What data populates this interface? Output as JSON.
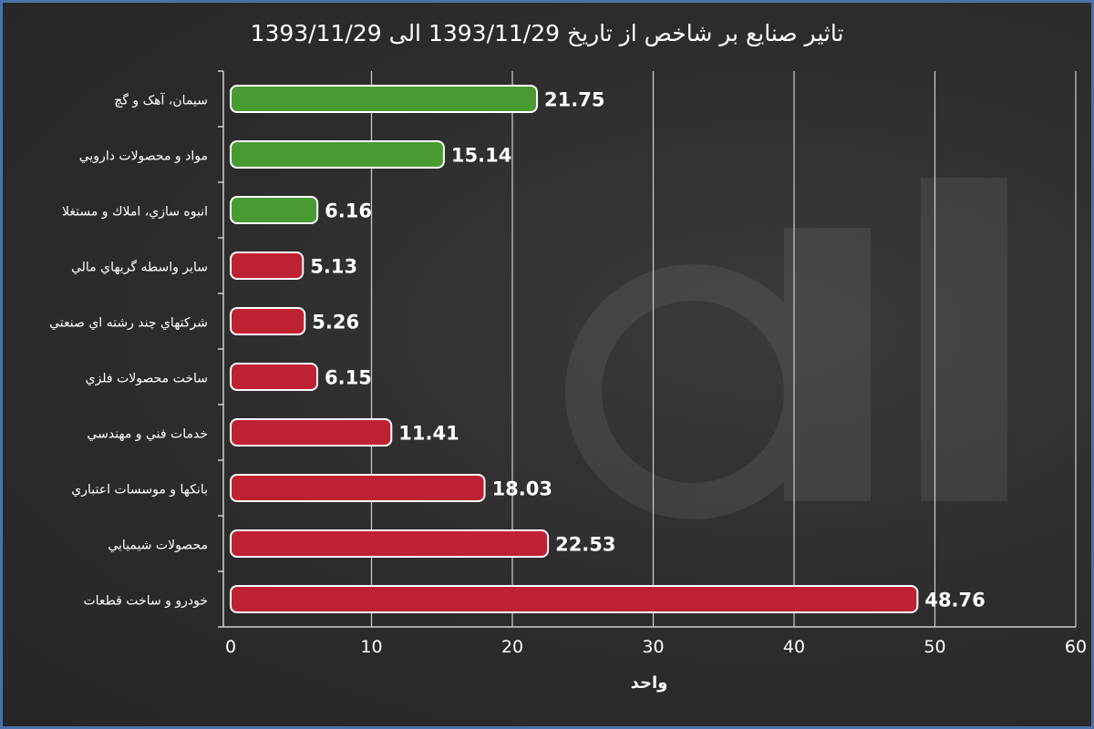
{
  "chart_data": {
    "type": "bar",
    "orientation": "horizontal",
    "title": "تاثیر صنایع بر شاخص از تاریخ 1393/11/29 الی 1393/11/29",
    "xlabel": "واحد",
    "ylabel": "",
    "xlim": [
      0,
      60
    ],
    "x_ticks": [
      0,
      10,
      20,
      30,
      40,
      50,
      60
    ],
    "grid": "vertical",
    "legend": "none",
    "categories": [
      "سیمان، آهک و گچ",
      "مواد و محصولات دارويي",
      "انبوه سازي، املاك و مستغلا",
      "ساير واسطه گريهاي مالي",
      "شركتهاي چند رشته اي صنعتي",
      "ساخت محصولات فلزي",
      "خدمات فني و مهندسي",
      "بانكها و موسسات اعتباري",
      "محصولات شيميايي",
      "خودرو و ساخت قطعات"
    ],
    "values": [
      21.75,
      15.14,
      6.16,
      5.13,
      5.26,
      6.15,
      11.41,
      18.03,
      22.53,
      48.76
    ],
    "value_labels": [
      "21.75",
      "15.14",
      "6.16",
      "5.13",
      "5.26",
      "6.15",
      "11.41",
      "18.03",
      "22.53",
      "48.76"
    ],
    "effect": [
      "positive",
      "positive",
      "positive",
      "negative",
      "negative",
      "negative",
      "negative",
      "negative",
      "negative",
      "negative"
    ],
    "colors": {
      "positive": "#4a9a34",
      "negative": "#be2232"
    }
  }
}
